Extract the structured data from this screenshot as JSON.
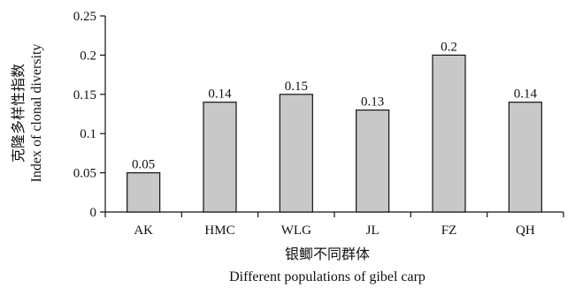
{
  "chart_data": {
    "type": "bar",
    "categories": [
      "AK",
      "HMC",
      "WLG",
      "JL",
      "FZ",
      "QH"
    ],
    "values": [
      0.05,
      0.14,
      0.15,
      0.13,
      0.2,
      0.14
    ],
    "data_labels": [
      "0.05",
      "0.14",
      "0.15",
      "0.13",
      "0.2",
      "0.14"
    ],
    "ylim": [
      0,
      0.25
    ],
    "yticks": [
      0,
      0.05,
      0.1,
      0.15,
      0.2,
      0.25
    ],
    "ytick_labels": [
      "0",
      "0.05",
      "0.1",
      "0.15",
      "0.2",
      "0.25"
    ],
    "ylabel_cn": "克隆多样性指数",
    "ylabel_en": "Index of clonal diversity",
    "xlabel_cn": "银鲫不同群体",
    "xlabel_en": "Different populations of gibel carp",
    "bar_color": "#c8c8c8",
    "bar_edge_color": "#111111",
    "grid": false,
    "legend": "none"
  }
}
